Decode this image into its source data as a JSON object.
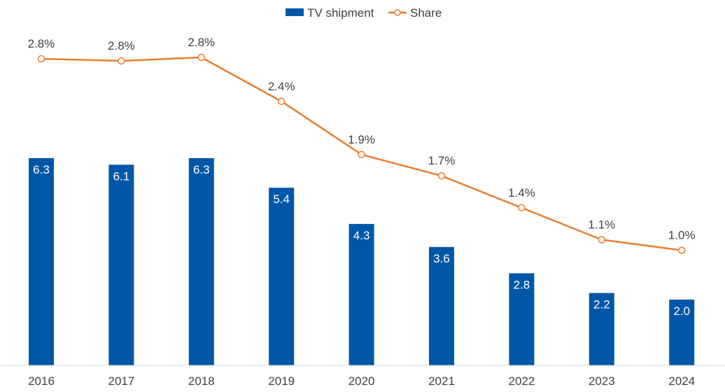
{
  "chart_data": {
    "type": "bar",
    "categories": [
      "2016",
      "2017",
      "2018",
      "2019",
      "2020",
      "2021",
      "2022",
      "2023",
      "2024"
    ],
    "series": [
      {
        "name": "TV shipment",
        "type": "bar",
        "color": "#0057A8",
        "values": [
          6.3,
          6.1,
          6.3,
          5.4,
          4.3,
          3.6,
          2.8,
          2.2,
          2.0
        ],
        "labels": [
          "6.3",
          "6.1",
          "6.3",
          "5.4",
          "4.3",
          "3.6",
          "2.8",
          "2.2",
          "2.0"
        ]
      },
      {
        "name": "Share",
        "type": "line",
        "color": "#E87E2E",
        "values": [
          2.8,
          2.8,
          2.8,
          2.4,
          1.9,
          1.7,
          1.4,
          1.1,
          1.0
        ],
        "labels": [
          "2.8%",
          "2.8%",
          "2.8%",
          "2.4%",
          "1.9%",
          "1.7%",
          "1.4%",
          "1.1%",
          "1.0%"
        ]
      }
    ],
    "legend_position": "top-center",
    "grid": false,
    "title": "",
    "xlabel": "",
    "ylabel": ""
  }
}
